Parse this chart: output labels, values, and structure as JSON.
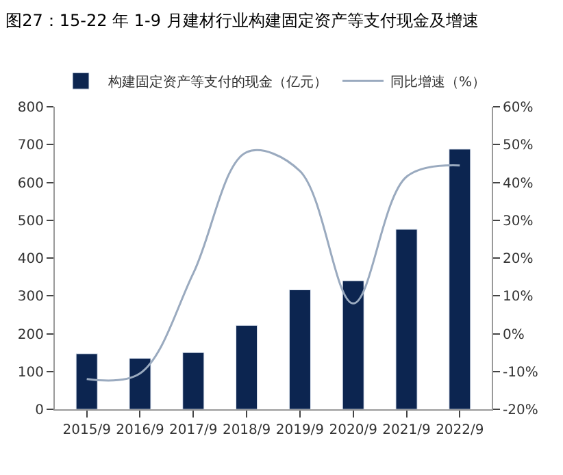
{
  "chart_data": {
    "type": "bar",
    "title": "图27：15-22 年 1-9 月建材行业构建固定资产等支付现金及增速",
    "categories": [
      "2015/9",
      "2016/9",
      "2017/9",
      "2018/9",
      "2019/9",
      "2020/9",
      "2021/9",
      "2022/9"
    ],
    "series": [
      {
        "name": "构建固定资产等支付的现金（亿元）",
        "color": "#0c2550",
        "values": [
          147,
          135,
          150,
          222,
          316,
          340,
          476,
          688
        ]
      },
      {
        "name": "同比增速（%）",
        "type": "line",
        "axis": "y2",
        "color": "#9aaabf",
        "marker": "none",
        "values": [
          -12,
          -10.5,
          16,
          48,
          43,
          8,
          41.5,
          44.5
        ]
      }
    ],
    "ylim": [
      0,
      800
    ],
    "yticks": [
      0,
      100,
      200,
      300,
      400,
      500,
      600,
      700,
      800
    ],
    "y2lim": [
      -20,
      60
    ],
    "y2ticks": [
      {
        "value": -20,
        "label": "-20%"
      },
      {
        "value": -10,
        "label": "-10%"
      },
      {
        "value": 0,
        "label": "0%"
      },
      {
        "value": 10,
        "label": "10%"
      },
      {
        "value": 20,
        "label": "20%"
      },
      {
        "value": 30,
        "label": "30%"
      },
      {
        "value": 40,
        "label": "40%"
      },
      {
        "value": 50,
        "label": "50%"
      },
      {
        "value": 60,
        "label": "60%"
      }
    ],
    "legend": "top"
  }
}
